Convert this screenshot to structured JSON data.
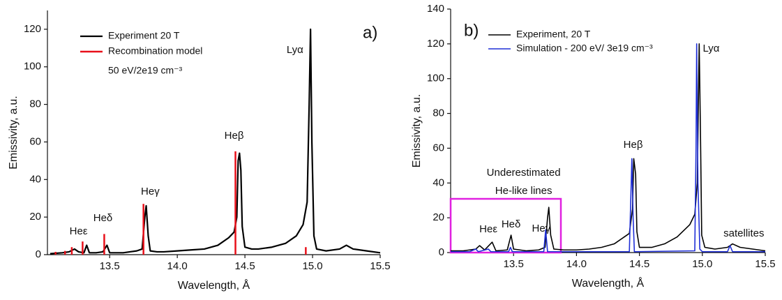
{
  "chart_data": [
    {
      "type": "line",
      "panel_label": "a)",
      "xlabel": "Wavelength, Å",
      "ylabel": "Emissivity, a.u.",
      "xlim": [
        13.04,
        15.5
      ],
      "ylim": [
        0,
        130
      ],
      "xticks": [
        13.5,
        {
          "value": 14,
          "label": "14.0"
        },
        14.5,
        {
          "value": 15,
          "label": "15.0"
        },
        15.5
      ],
      "yticks": [
        0,
        20,
        40,
        60,
        80,
        100,
        120
      ],
      "legend": "top-left",
      "legend_note": "50 eV/2e19 cm⁻³",
      "annotations": [
        "Heε",
        "Heδ",
        "Heγ",
        "Heβ",
        "Lyα"
      ],
      "series": [
        {
          "name": "Experiment 20 T",
          "color": "#000000",
          "style": "line",
          "width": 2.2,
          "x": [
            13.06,
            13.15,
            13.2,
            13.24,
            13.27,
            13.31,
            13.33,
            13.35,
            13.4,
            13.45,
            13.48,
            13.5,
            13.55,
            13.6,
            13.65,
            13.7,
            13.74,
            13.76,
            13.77,
            13.785,
            13.8,
            13.85,
            13.9,
            14.0,
            14.1,
            14.2,
            14.3,
            14.38,
            14.42,
            14.44,
            14.45,
            14.46,
            14.47,
            14.48,
            14.5,
            14.55,
            14.6,
            14.7,
            14.8,
            14.88,
            14.93,
            14.96,
            14.975,
            14.985,
            14.995,
            15.01,
            15.03,
            15.1,
            15.2,
            15.25,
            15.3,
            15.4,
            15.5
          ],
          "values": [
            0.5,
            1,
            1.5,
            3,
            1.5,
            1,
            5,
            1,
            1,
            1.5,
            5,
            1,
            1,
            1,
            1.5,
            2,
            3,
            20,
            26,
            10,
            2,
            1.5,
            1.5,
            2,
            2.5,
            3,
            5,
            9,
            12,
            20,
            50,
            54,
            45,
            15,
            4,
            3,
            3,
            4,
            6,
            10,
            16,
            28,
            80,
            120,
            60,
            10,
            3,
            2,
            3,
            5,
            3,
            2,
            1
          ]
        },
        {
          "name": "Recombination model",
          "color": "#e8101a",
          "style": "stick",
          "width": 2.5,
          "x": [
            13.1,
            13.17,
            13.22,
            13.3,
            13.46,
            13.75,
            14.43,
            14.95
          ],
          "values": [
            1.5,
            2,
            4,
            7,
            11,
            27,
            55,
            4
          ]
        }
      ]
    },
    {
      "type": "line",
      "panel_label": "b)",
      "xlabel": "Wavelength, Å",
      "ylabel": "Emissivity, a.u.",
      "xlim": [
        13.0,
        15.5
      ],
      "ylim": [
        0,
        140
      ],
      "xticks": [
        13.5,
        {
          "value": 14,
          "label": "14.0"
        },
        14.5,
        {
          "value": 15,
          "label": "15.0"
        },
        15.5
      ],
      "yticks": [
        0,
        20,
        40,
        60,
        80,
        100,
        120,
        140
      ],
      "legend": "top-left",
      "annotations": [
        "Heβ",
        "Lyα",
        "Underestimated",
        "He-like lines",
        "Heε",
        "Heδ",
        "Heγ",
        "satellites"
      ],
      "series": [
        {
          "name": "Experiment, 20 T",
          "color": "#000000",
          "style": "line",
          "width": 1.6,
          "x": [
            13.0,
            13.1,
            13.2,
            13.23,
            13.27,
            13.33,
            13.36,
            13.45,
            13.48,
            13.5,
            13.6,
            13.7,
            13.75,
            13.77,
            13.78,
            13.795,
            13.82,
            13.9,
            14.0,
            14.1,
            14.2,
            14.3,
            14.38,
            14.42,
            14.445,
            14.455,
            14.47,
            14.48,
            14.5,
            14.6,
            14.7,
            14.8,
            14.9,
            14.94,
            14.96,
            14.975,
            14.985,
            14.995,
            15.02,
            15.1,
            15.2,
            15.24,
            15.3,
            15.4,
            15.5
          ],
          "values": [
            1,
            1,
            2,
            4,
            1.5,
            6,
            1,
            1.5,
            10,
            2,
            1,
            1.5,
            3,
            20,
            26,
            10,
            2,
            1.5,
            1.5,
            2,
            3,
            5,
            9,
            11,
            25,
            54,
            45,
            12,
            3,
            3,
            5,
            9,
            16,
            22,
            40,
            120,
            70,
            10,
            3,
            2,
            3,
            5,
            3,
            2,
            1
          ]
        },
        {
          "name": "Simulation - 200 eV/ 3e19 cm⁻³",
          "color": "#1f2fd6",
          "style": "line",
          "width": 1.6,
          "x": [
            13.0,
            13.15,
            13.2,
            13.22,
            13.3,
            13.32,
            13.46,
            13.475,
            13.49,
            13.74,
            13.755,
            13.77,
            14.42,
            14.435,
            14.44,
            14.45,
            14.46,
            14.94,
            14.95,
            14.955,
            14.965,
            14.98,
            15.0,
            15.2,
            15.22,
            15.24,
            15.5
          ],
          "values": [
            0.5,
            0.5,
            2,
            0.5,
            2,
            0.5,
            0.5,
            3,
            0.5,
            0.5,
            13,
            0.5,
            0.5,
            40,
            54,
            20,
            0.5,
            1,
            60,
            120,
            40,
            2,
            0.5,
            0.5,
            4,
            0.5,
            0.5
          ]
        }
      ]
    }
  ]
}
